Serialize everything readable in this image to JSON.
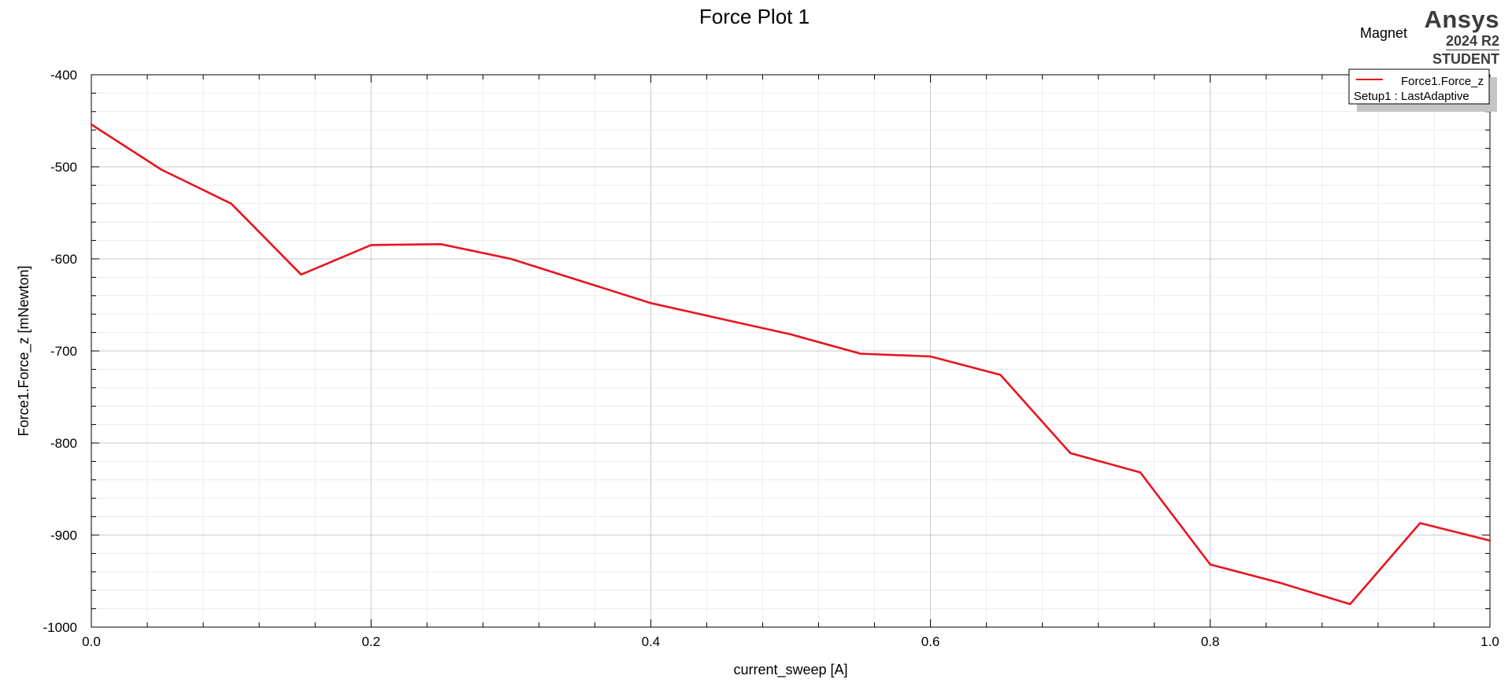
{
  "app": {
    "product_label": "Magnet",
    "brand": "Ansys",
    "version": "2024 R2",
    "edition": "STUDENT"
  },
  "chart_data": {
    "type": "line",
    "title": "Force Plot 1",
    "xlabel": "current_sweep [A]",
    "ylabel": "Force1.Force_z [mNewton]",
    "xlim": [
      0,
      1
    ],
    "ylim": [
      -1000,
      -400
    ],
    "xticks": [
      0,
      0.2,
      0.4,
      0.6,
      0.8,
      1
    ],
    "xtick_labels": [
      "0.0",
      "0.2",
      "0.4",
      "0.6",
      "0.8",
      "1.0"
    ],
    "yticks": [
      -1000,
      -900,
      -800,
      -700,
      -600,
      -500,
      -400
    ],
    "ytick_labels": [
      "-1000",
      "-900",
      "-800",
      "-700",
      "-600",
      "-500",
      "-400"
    ],
    "grid": true,
    "legend_position": "top-right",
    "legend": {
      "entry": "Force1.Force_z",
      "subtitle": "Setup1 : LastAdaptive"
    },
    "series": [
      {
        "name": "Force1.Force_z",
        "color": "#e8141e",
        "x": [
          0.0,
          0.05,
          0.1,
          0.15,
          0.2,
          0.25,
          0.3,
          0.35,
          0.4,
          0.45,
          0.5,
          0.55,
          0.6,
          0.65,
          0.7,
          0.75,
          0.8,
          0.85,
          0.9,
          0.95,
          1.0
        ],
        "y": [
          -454,
          -503,
          -540,
          -617,
          -585,
          -584,
          -600,
          -624,
          -648,
          -665,
          -682,
          -703,
          -706,
          -726,
          -811,
          -832,
          -932,
          -952,
          -975,
          -887,
          -906
        ]
      }
    ]
  }
}
